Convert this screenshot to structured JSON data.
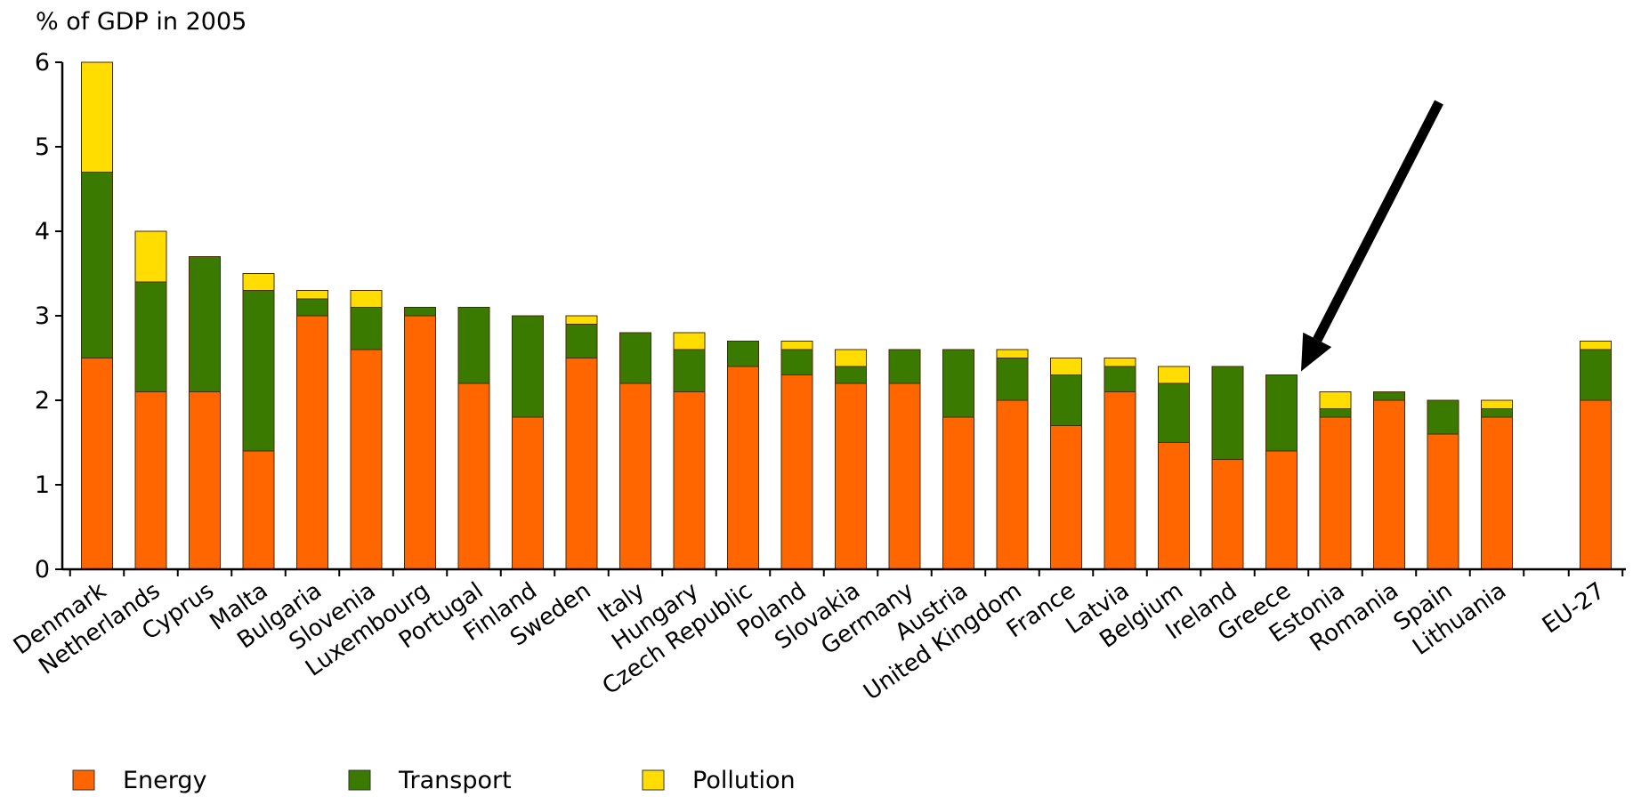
{
  "chart_data": {
    "type": "bar",
    "stacked": true,
    "unit_label": "% of GDP in 2005",
    "title": "",
    "xlabel": "",
    "ylabel": "",
    "ylim": [
      0,
      6
    ],
    "yticks": [
      "0",
      "1",
      "2",
      "3",
      "4",
      "5",
      "6"
    ],
    "grid": false,
    "legend_position": "bottom-left",
    "categories": [
      "Denmark",
      "Netherlands",
      "Cyprus",
      "Malta",
      "Bulgaria",
      "Slovenia",
      "Luxembourg",
      "Portugal",
      "Finland",
      "Sweden",
      "Italy",
      "Hungary",
      "Czech Republic",
      "Poland",
      "Slovakia",
      "Germany",
      "Austria",
      "United Kingdom",
      "France",
      "Latvia",
      "Belgium",
      "Ireland",
      "Greece",
      "Estonia",
      "Romania",
      "Spain",
      "Lithuania",
      "EU-27"
    ],
    "series": [
      {
        "name": "Energy",
        "color": "#ff6600",
        "values": [
          2.5,
          2.1,
          2.1,
          1.4,
          3.0,
          2.6,
          3.0,
          2.2,
          1.8,
          2.5,
          2.2,
          2.1,
          2.4,
          2.3,
          2.2,
          2.2,
          1.8,
          2.0,
          1.7,
          2.1,
          1.5,
          1.3,
          1.4,
          1.8,
          2.0,
          1.6,
          1.8,
          2.0
        ]
      },
      {
        "name": "Transport",
        "color": "#3a7a00",
        "values": [
          2.2,
          1.3,
          1.6,
          1.9,
          0.2,
          0.5,
          0.1,
          0.9,
          1.2,
          0.4,
          0.6,
          0.5,
          0.3,
          0.3,
          0.2,
          0.4,
          0.8,
          0.5,
          0.6,
          0.3,
          0.7,
          1.1,
          0.9,
          0.1,
          0.1,
          0.4,
          0.1,
          0.6
        ]
      },
      {
        "name": "Pollution",
        "color": "#ffdd00",
        "values": [
          1.3,
          0.6,
          0.0,
          0.2,
          0.1,
          0.2,
          0.0,
          0.0,
          0.0,
          0.1,
          0.0,
          0.2,
          0.0,
          0.1,
          0.2,
          0.0,
          0.0,
          0.1,
          0.2,
          0.1,
          0.2,
          0.0,
          0.0,
          0.2,
          0.0,
          0.0,
          0.1,
          0.1
        ]
      }
    ],
    "annotation": {
      "type": "arrow",
      "target_category": "Greece",
      "color": "#000000"
    }
  }
}
